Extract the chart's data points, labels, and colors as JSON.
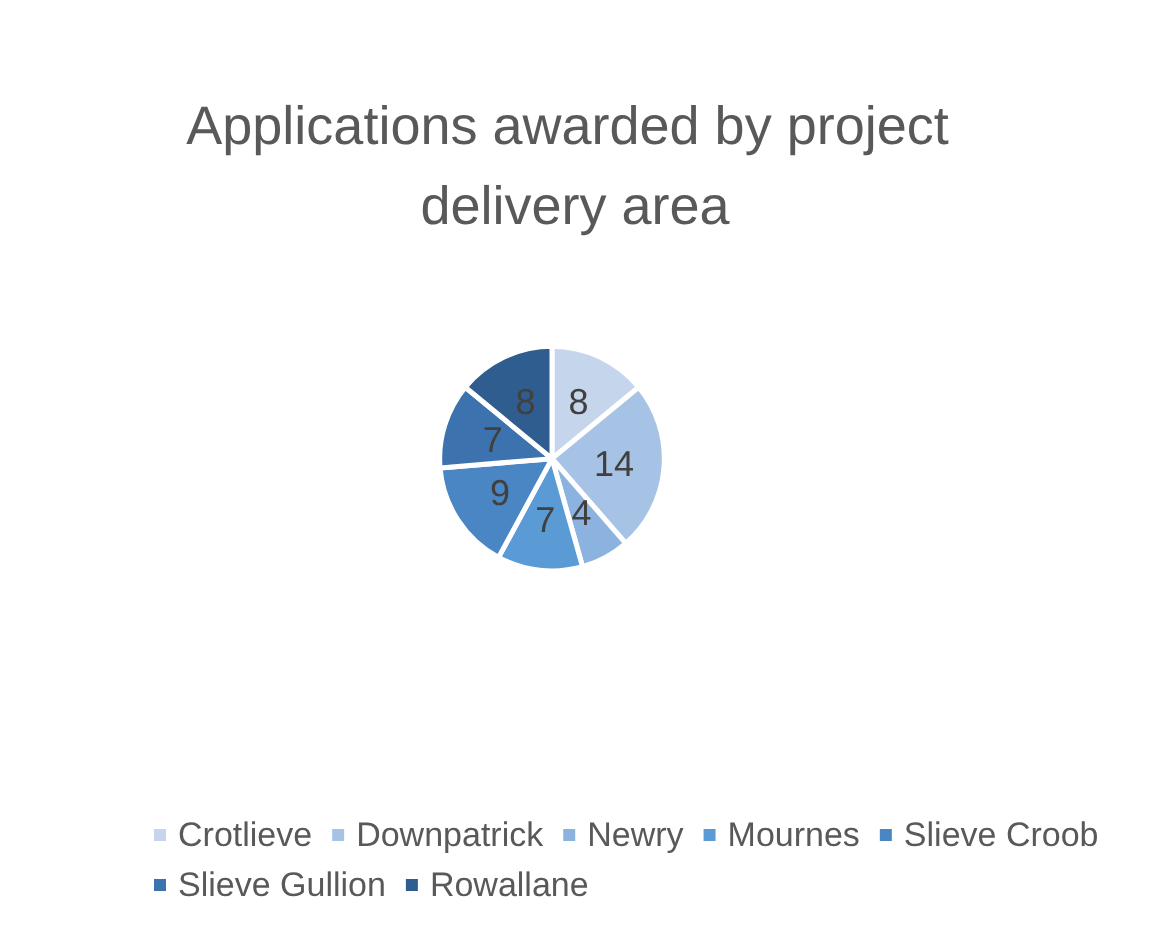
{
  "chart_data": {
    "type": "pie",
    "title": "Applications awarded by project delivery area",
    "categories": [
      "Crotlieve",
      "Downpatrick",
      "Newry",
      "Mournes",
      "Slieve Croob",
      "Slieve Gullion",
      "Rowallane"
    ],
    "values": [
      8,
      14,
      4,
      7,
      9,
      7,
      8
    ],
    "colors": [
      "#c5d6ec",
      "#a6c3e6",
      "#8cb3df",
      "#5b9bd5",
      "#4a86c4",
      "#3c72ad",
      "#2f5d8f"
    ],
    "data_labels": true,
    "legend": "bottom"
  }
}
